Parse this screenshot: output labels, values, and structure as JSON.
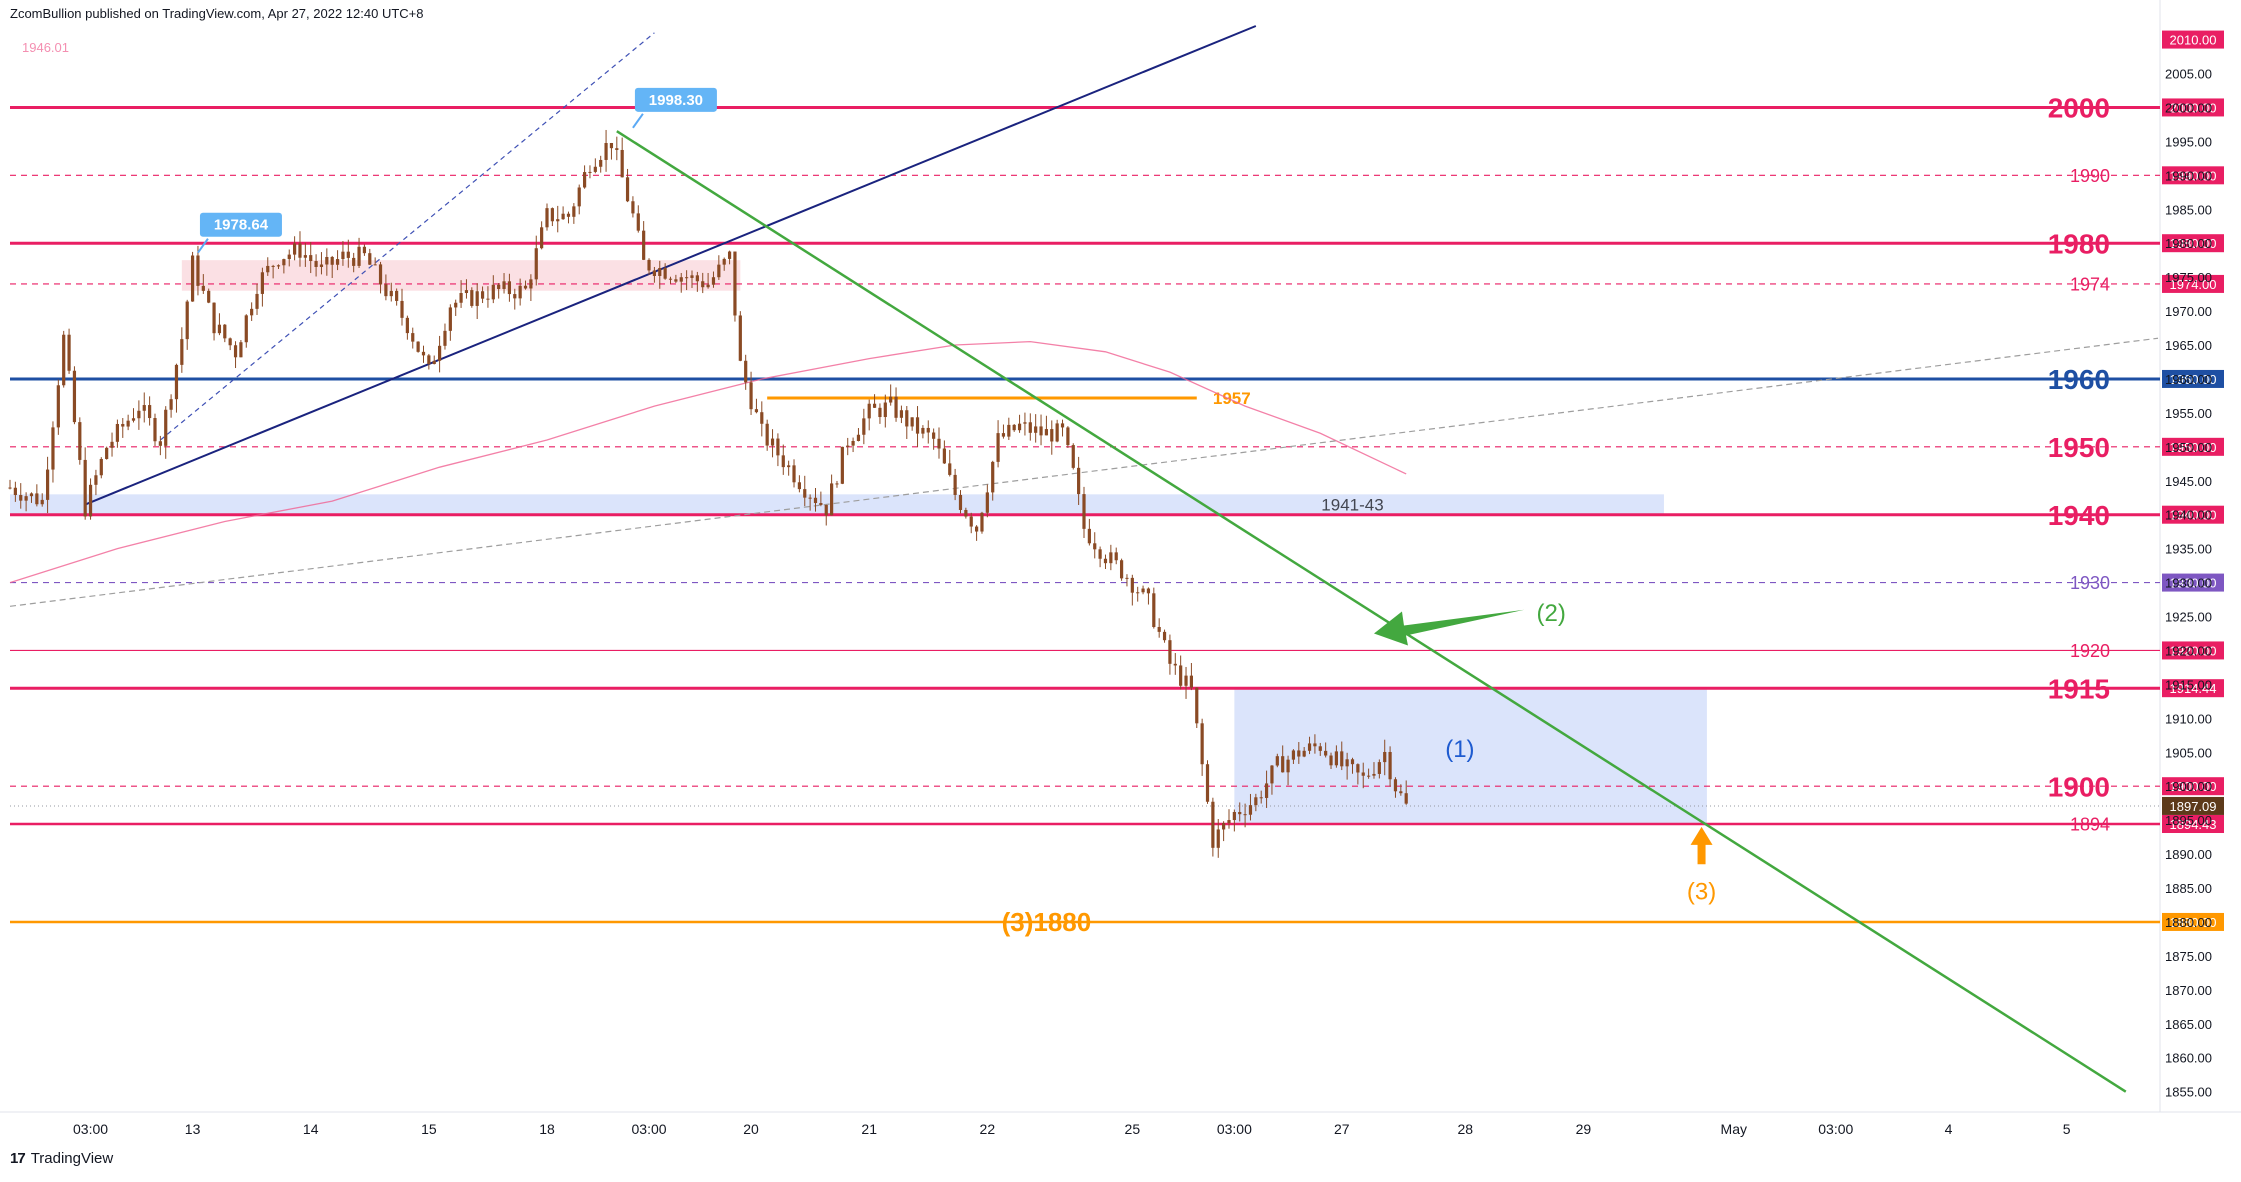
{
  "header": {
    "published_by": "ZcomBullion published on TradingView.com, Apr 27, 2022 12:40 UTC+8"
  },
  "footer": {
    "brand": "TradingView",
    "logo_glyph": "17"
  },
  "colors": {
    "candle": "#8a4a24",
    "level_red": "#e91e63",
    "level_blue": "#1e4fa3",
    "level_orange": "#ff9800",
    "trend_green": "#43a83f",
    "trend_navy": "#1a237e",
    "ma_pink": "#f06292",
    "zone_blue": "#dbe4fb",
    "zone_pink": "#fbe0e4",
    "level_purple": "#7e57c2"
  },
  "chart_data": {
    "type": "candlestick",
    "symbol_note": "1946.01",
    "currency": "USD",
    "ylim": [
      1852,
      2012
    ],
    "y_ticks": [
      1855,
      1860,
      1865,
      1870,
      1875,
      1880,
      1885,
      1890,
      1895,
      1900,
      1905,
      1910,
      1915,
      1920,
      1925,
      1930,
      1935,
      1940,
      1945,
      1950,
      1955,
      1960,
      1965,
      1970,
      1975,
      1980,
      1985,
      1990,
      1995,
      2000,
      2005,
      2010
    ],
    "y_tick_labels": [
      "1855.00",
      "1860.00",
      "1865.00",
      "1870.00",
      "1875.00",
      "1880.00",
      "1885.00",
      "1890.00",
      "1895.00",
      "1900.00",
      "1905.00",
      "1910.00",
      "1915.00",
      "1920.00",
      "1925.00",
      "1930.00",
      "1935.00",
      "1940.00",
      "1945.00",
      "1950.00",
      "1955.00",
      "1960.00",
      "1965.00",
      "1970.00",
      "1975.00",
      "1980.00",
      "1985.00",
      "1990.00",
      "1995.00",
      "2000.00",
      "2005.00",
      "2010.00"
    ],
    "x_range": [
      0,
      200
    ],
    "x_ticks": [
      {
        "label": "03:00",
        "t": 7.5
      },
      {
        "label": "13",
        "t": 17
      },
      {
        "label": "14",
        "t": 28
      },
      {
        "label": "15",
        "t": 39
      },
      {
        "label": "18",
        "t": 50
      },
      {
        "label": "03:00",
        "t": 59.5
      },
      {
        "label": "20",
        "t": 69
      },
      {
        "label": "21",
        "t": 80
      },
      {
        "label": "22",
        "t": 91
      },
      {
        "label": "25",
        "t": 104.5
      },
      {
        "label": "03:00",
        "t": 114
      },
      {
        "label": "27",
        "t": 124
      },
      {
        "label": "28",
        "t": 135.5
      },
      {
        "label": "29",
        "t": 146.5
      },
      {
        "label": "May",
        "t": 160.5
      },
      {
        "label": "03:00",
        "t": 170
      },
      {
        "label": "4",
        "t": 180.5
      },
      {
        "label": "5",
        "t": 191.5
      }
    ],
    "price_path": [
      [
        0,
        1944
      ],
      [
        3,
        1942
      ],
      [
        5,
        1966
      ],
      [
        7,
        1941
      ],
      [
        9,
        1950
      ],
      [
        12,
        1956
      ],
      [
        14,
        1951
      ],
      [
        16,
        1966
      ],
      [
        17,
        1977
      ],
      [
        19,
        1968
      ],
      [
        21,
        1964
      ],
      [
        23,
        1974
      ],
      [
        25,
        1978
      ],
      [
        27,
        1979
      ],
      [
        29,
        1976
      ],
      [
        31,
        1978
      ],
      [
        33,
        1978
      ],
      [
        35,
        1973
      ],
      [
        37,
        1968
      ],
      [
        39,
        1961
      ],
      [
        41,
        1971
      ],
      [
        43,
        1972
      ],
      [
        45,
        1973
      ],
      [
        48,
        1973
      ],
      [
        50,
        1984
      ],
      [
        52,
        1984
      ],
      [
        54,
        1992
      ],
      [
        56,
        1995
      ],
      [
        58,
        1984
      ],
      [
        59,
        1977
      ],
      [
        61,
        1976
      ],
      [
        63,
        1975
      ],
      [
        65,
        1974
      ],
      [
        67,
        1978
      ],
      [
        68,
        1962
      ],
      [
        70,
        1952
      ],
      [
        72,
        1948
      ],
      [
        74,
        1944
      ],
      [
        76,
        1941
      ],
      [
        78,
        1951
      ],
      [
        80,
        1955
      ],
      [
        82,
        1956
      ],
      [
        84,
        1953
      ],
      [
        86,
        1951
      ],
      [
        88,
        1943
      ],
      [
        90,
        1938
      ],
      [
        92,
        1951
      ],
      [
        94,
        1953
      ],
      [
        96,
        1952
      ],
      [
        98,
        1952
      ],
      [
        99,
        1946
      ],
      [
        100,
        1938
      ],
      [
        102,
        1934
      ],
      [
        104,
        1931
      ],
      [
        106,
        1927
      ],
      [
        108,
        1918
      ],
      [
        110,
        1914
      ],
      [
        111,
        1903
      ],
      [
        112,
        1892
      ],
      [
        114,
        1896
      ],
      [
        116,
        1898
      ],
      [
        118,
        1903
      ],
      [
        120,
        1905
      ],
      [
        122,
        1906
      ],
      [
        124,
        1903
      ],
      [
        126,
        1901
      ],
      [
        128,
        1905
      ],
      [
        129,
        1900
      ],
      [
        130,
        1897
      ]
    ],
    "moving_average": [
      [
        0,
        1930
      ],
      [
        10,
        1935
      ],
      [
        20,
        1939
      ],
      [
        30,
        1942
      ],
      [
        40,
        1947
      ],
      [
        50,
        1951
      ],
      [
        60,
        1956
      ],
      [
        70,
        1960
      ],
      [
        80,
        1963
      ],
      [
        88,
        1965
      ],
      [
        95,
        1965.5
      ],
      [
        102,
        1964
      ],
      [
        108,
        1961
      ],
      [
        115,
        1956
      ],
      [
        122,
        1952
      ],
      [
        130,
        1946
      ]
    ],
    "horizontal_levels": [
      {
        "label": "2000",
        "price": 2000,
        "tag": "2000.00",
        "style": "solid",
        "color": "#e91e63",
        "major": true
      },
      {
        "label": "1990",
        "price": 1990,
        "tag": "1990.00",
        "style": "dashed",
        "color": "#e91e63",
        "major": false
      },
      {
        "label": "1980",
        "price": 1980,
        "tag": "1980.00",
        "style": "solid",
        "color": "#e91e63",
        "major": true
      },
      {
        "label": "1974",
        "price": 1974,
        "tag": "1974.00",
        "style": "dashed",
        "color": "#e91e63",
        "major": false
      },
      {
        "label": "1960",
        "price": 1960,
        "tag": "1960.00",
        "style": "solid",
        "color": "#1e4fa3",
        "major": true
      },
      {
        "label": "1950",
        "price": 1950,
        "tag": "1950.00",
        "style": "dashed",
        "color": "#e91e63",
        "major": true
      },
      {
        "label": "1940",
        "price": 1940,
        "tag": "1940.00",
        "style": "solid",
        "color": "#e91e63",
        "major": true
      },
      {
        "label": "1930",
        "price": 1930,
        "tag": "1930.00",
        "style": "dashed",
        "color": "#7e57c2",
        "major": false
      },
      {
        "label": "1920",
        "price": 1920,
        "tag": "1920.00",
        "style": "thin",
        "color": "#e91e63",
        "major": false
      },
      {
        "label": "1915",
        "price": 1914.44,
        "tag": "1914.44",
        "style": "solid",
        "color": "#e91e63",
        "major": true
      },
      {
        "label": "1900",
        "price": 1900,
        "tag": "1900.00",
        "style": "dashed",
        "color": "#e91e63",
        "major": true
      },
      {
        "label": "1894",
        "price": 1894.43,
        "tag": "1894.43",
        "style": "solid",
        "color": "#e91e63",
        "major": false
      },
      {
        "label": "",
        "price": 1880,
        "tag": "1880.00",
        "style": "solid",
        "color": "#ff9800",
        "major": false
      }
    ],
    "current_price": {
      "price": 1897.09,
      "tag": "1897.09"
    },
    "top_tag": {
      "price": 2010,
      "tag": "2010.00"
    },
    "annotations": {
      "high_1": {
        "label": "1998.30",
        "t": 58,
        "price": 1997
      },
      "high_2": {
        "label": "1978.64",
        "t": 17.5,
        "price": 1978.6
      },
      "zone_label": "1941-43",
      "level_1957": "1957",
      "wave_1": "(1)",
      "wave_2": "(2)",
      "wave_3": "(3)",
      "target_1880": "(3)1880"
    }
  }
}
